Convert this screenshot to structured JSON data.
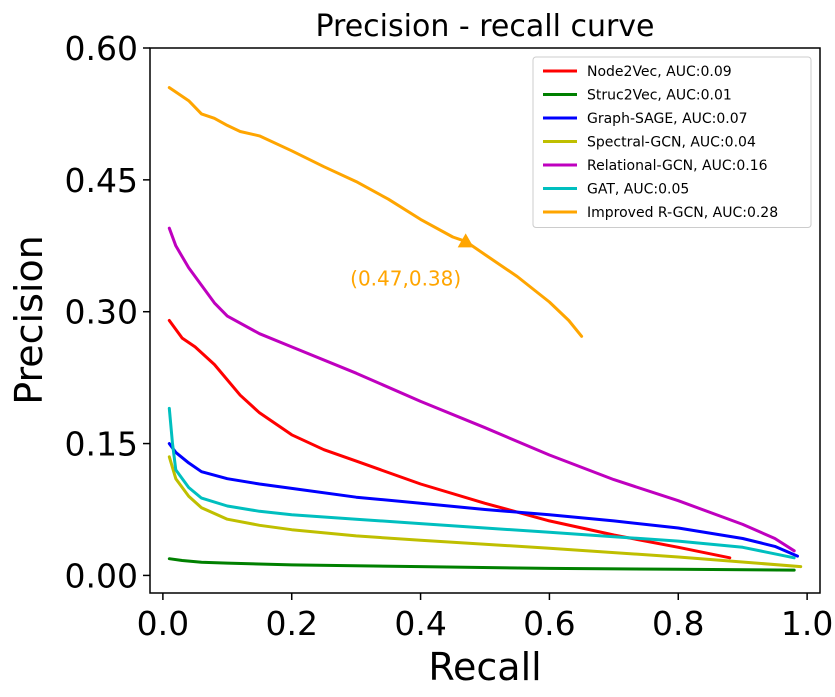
{
  "chart_data": {
    "type": "line",
    "title": "Precision - recall curve",
    "xlabel": "Recall",
    "ylabel": "Precision",
    "xlim": [
      -0.02,
      1.02
    ],
    "ylim": [
      -0.02,
      0.6
    ],
    "xticks": [
      0.0,
      0.2,
      0.4,
      0.6,
      0.8,
      1.0
    ],
    "xtick_labels": [
      "0.0",
      "0.2",
      "0.4",
      "0.6",
      "0.8",
      "1.0"
    ],
    "yticks": [
      0.0,
      0.15,
      0.3,
      0.45,
      0.6
    ],
    "ytick_labels": [
      "0.00",
      "0.15",
      "0.30",
      "0.45",
      "0.60"
    ],
    "grid": false,
    "legend_position": "top-right",
    "series": [
      {
        "name": "Node2Vec, AUC:0.09",
        "color": "#ff0000",
        "x": [
          0.01,
          0.03,
          0.05,
          0.08,
          0.12,
          0.15,
          0.2,
          0.25,
          0.3,
          0.4,
          0.5,
          0.6,
          0.7,
          0.8,
          0.88
        ],
        "y": [
          0.29,
          0.27,
          0.26,
          0.24,
          0.205,
          0.185,
          0.16,
          0.143,
          0.13,
          0.104,
          0.082,
          0.062,
          0.046,
          0.032,
          0.02
        ]
      },
      {
        "name": "Struc2Vec, AUC:0.01",
        "color": "#008000",
        "x": [
          0.01,
          0.03,
          0.06,
          0.1,
          0.2,
          0.4,
          0.6,
          0.8,
          0.98
        ],
        "y": [
          0.019,
          0.017,
          0.015,
          0.014,
          0.012,
          0.01,
          0.008,
          0.007,
          0.006
        ]
      },
      {
        "name": "Graph-SAGE, AUC:0.07",
        "color": "#0000ff",
        "x": [
          0.01,
          0.02,
          0.04,
          0.06,
          0.1,
          0.15,
          0.2,
          0.3,
          0.4,
          0.5,
          0.6,
          0.7,
          0.8,
          0.9,
          0.95,
          0.985
        ],
        "y": [
          0.15,
          0.14,
          0.128,
          0.118,
          0.11,
          0.104,
          0.099,
          0.089,
          0.082,
          0.075,
          0.069,
          0.062,
          0.054,
          0.042,
          0.033,
          0.022
        ]
      },
      {
        "name": "Spectral-GCN, AUC:0.04",
        "color": "#bfbf00",
        "x": [
          0.01,
          0.02,
          0.04,
          0.06,
          0.1,
          0.15,
          0.2,
          0.3,
          0.4,
          0.6,
          0.8,
          0.99
        ],
        "y": [
          0.135,
          0.11,
          0.09,
          0.077,
          0.064,
          0.057,
          0.052,
          0.045,
          0.04,
          0.031,
          0.021,
          0.01
        ]
      },
      {
        "name": "Relational-GCN, AUC:0.16",
        "color": "#bf00bf",
        "x": [
          0.01,
          0.02,
          0.04,
          0.06,
          0.08,
          0.1,
          0.15,
          0.2,
          0.3,
          0.4,
          0.5,
          0.6,
          0.7,
          0.8,
          0.9,
          0.95,
          0.98
        ],
        "y": [
          0.395,
          0.375,
          0.35,
          0.33,
          0.31,
          0.295,
          0.275,
          0.26,
          0.23,
          0.198,
          0.168,
          0.137,
          0.109,
          0.085,
          0.058,
          0.042,
          0.028
        ]
      },
      {
        "name": "GAT, AUC:0.05",
        "color": "#00bfbf",
        "x": [
          0.01,
          0.015,
          0.02,
          0.04,
          0.06,
          0.1,
          0.15,
          0.2,
          0.3,
          0.4,
          0.5,
          0.6,
          0.7,
          0.8,
          0.9,
          0.98
        ],
        "y": [
          0.19,
          0.15,
          0.12,
          0.1,
          0.088,
          0.079,
          0.073,
          0.069,
          0.064,
          0.059,
          0.054,
          0.049,
          0.044,
          0.039,
          0.032,
          0.02
        ]
      },
      {
        "name": "Improved R-GCN, AUC:0.28",
        "color": "#ffa500",
        "x": [
          0.01,
          0.02,
          0.04,
          0.06,
          0.08,
          0.1,
          0.12,
          0.15,
          0.2,
          0.25,
          0.3,
          0.35,
          0.4,
          0.45,
          0.47,
          0.5,
          0.55,
          0.6,
          0.63,
          0.65
        ],
        "y": [
          0.555,
          0.55,
          0.54,
          0.525,
          0.52,
          0.512,
          0.505,
          0.5,
          0.483,
          0.465,
          0.448,
          0.428,
          0.405,
          0.385,
          0.38,
          0.365,
          0.34,
          0.311,
          0.29,
          0.272
        ]
      }
    ],
    "annotations": [
      {
        "text": "(0.47,0.38)",
        "x": 0.47,
        "y": 0.38,
        "marker": "triangle",
        "color": "#ffa500"
      }
    ]
  }
}
